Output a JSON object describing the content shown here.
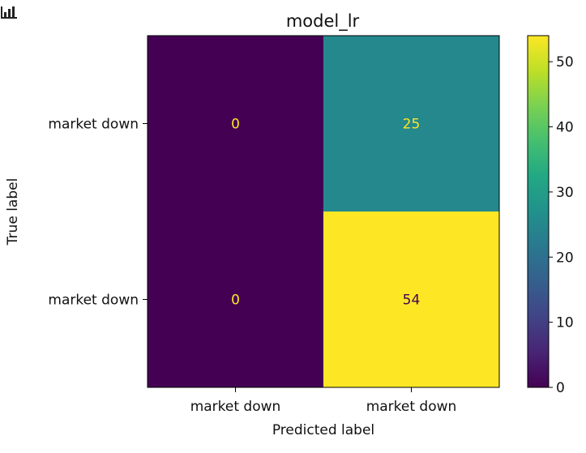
{
  "chart_data": {
    "type": "heatmap",
    "title": "model_lr",
    "xlabel": "Predicted label",
    "ylabel": "True label",
    "x_tick_labels": [
      "market down",
      "market down"
    ],
    "y_tick_labels": [
      "market down",
      "market down"
    ],
    "matrix": [
      [
        0,
        25
      ],
      [
        0,
        54
      ]
    ],
    "colormap": "viridis",
    "colorbar": {
      "range": [
        0,
        54
      ],
      "ticks": [
        0,
        10,
        20,
        30,
        40,
        50
      ],
      "tick_labels": [
        "0",
        "10",
        "20",
        "30",
        "40",
        "50"
      ]
    },
    "grid": false
  },
  "colors": {
    "cell_low_text": "#fde725",
    "cell_high_text": "#440154"
  },
  "icons": {
    "corner": "bar-chart-icon"
  }
}
